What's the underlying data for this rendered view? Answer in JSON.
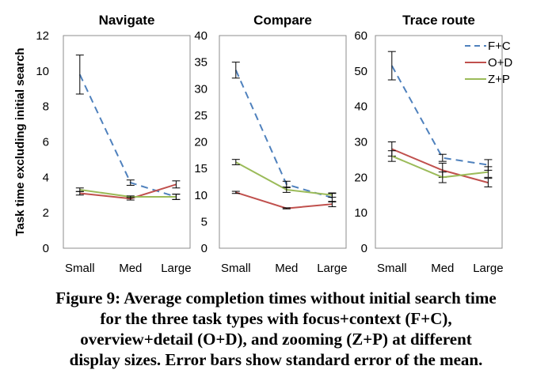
{
  "chart_data": [
    {
      "type": "line",
      "title": "Navigate",
      "ylabel": "Task time excluding initial search",
      "categories": [
        "Small",
        "Med",
        "Large"
      ],
      "ylim": [
        0,
        12
      ],
      "yticks": [
        0,
        2,
        4,
        6,
        8,
        10,
        12
      ],
      "series": [
        {
          "name": "F+C",
          "color": "#4f81bd",
          "dash": true,
          "values": [
            9.8,
            3.7,
            2.9
          ],
          "err": [
            1.1,
            0.15,
            0.15
          ]
        },
        {
          "name": "O+D",
          "color": "#c0504d",
          "dash": false,
          "values": [
            3.1,
            2.8,
            3.6
          ],
          "err": [
            0.1,
            0.08,
            0.2
          ]
        },
        {
          "name": "Z+P",
          "color": "#9bbb59",
          "dash": false,
          "values": [
            3.3,
            2.9,
            2.9
          ],
          "err": [
            0.1,
            0.05,
            0.15
          ]
        }
      ]
    },
    {
      "type": "line",
      "title": "Compare",
      "categories": [
        "Small",
        "Med",
        "Large"
      ],
      "ylim": [
        0,
        40
      ],
      "yticks": [
        0,
        5,
        10,
        15,
        20,
        25,
        30,
        35,
        40
      ],
      "series": [
        {
          "name": "F+C",
          "color": "#4f81bd",
          "dash": true,
          "values": [
            33.5,
            12.0,
            9.5
          ],
          "err": [
            1.5,
            0.6,
            0.8
          ]
        },
        {
          "name": "O+D",
          "color": "#c0504d",
          "dash": false,
          "values": [
            10.5,
            7.5,
            8.3
          ],
          "err": [
            0.2,
            0.1,
            0.5
          ]
        },
        {
          "name": "Z+P",
          "color": "#9bbb59",
          "dash": false,
          "values": [
            16.2,
            11.0,
            10.0
          ],
          "err": [
            0.5,
            0.5,
            0.4
          ]
        }
      ]
    },
    {
      "type": "line",
      "title": "Trace route",
      "categories": [
        "Small",
        "Med",
        "Large"
      ],
      "ylim": [
        0,
        60
      ],
      "yticks": [
        0,
        10,
        20,
        30,
        40,
        50,
        60
      ],
      "legend": "top-right",
      "series": [
        {
          "name": "F+C",
          "color": "#4f81bd",
          "dash": true,
          "values": [
            51.5,
            25.5,
            23.5
          ],
          "err": [
            4.0,
            1.0,
            1.5
          ]
        },
        {
          "name": "O+D",
          "color": "#c0504d",
          "dash": false,
          "values": [
            28.0,
            22.0,
            18.5
          ],
          "err": [
            2.0,
            2.0,
            1.2
          ]
        },
        {
          "name": "Z+P",
          "color": "#9bbb59",
          "dash": false,
          "values": [
            26.0,
            20.0,
            21.5
          ],
          "err": [
            1.5,
            1.5,
            1.5
          ]
        }
      ]
    }
  ],
  "caption": {
    "lines": [
      "Figure 9: Average completion times without initial search time",
      "for the three task types with focus+context (F+C),",
      "overview+detail (O+D), and zooming (Z+P) at different",
      "display sizes. Error bars show standard error of the mean."
    ]
  }
}
